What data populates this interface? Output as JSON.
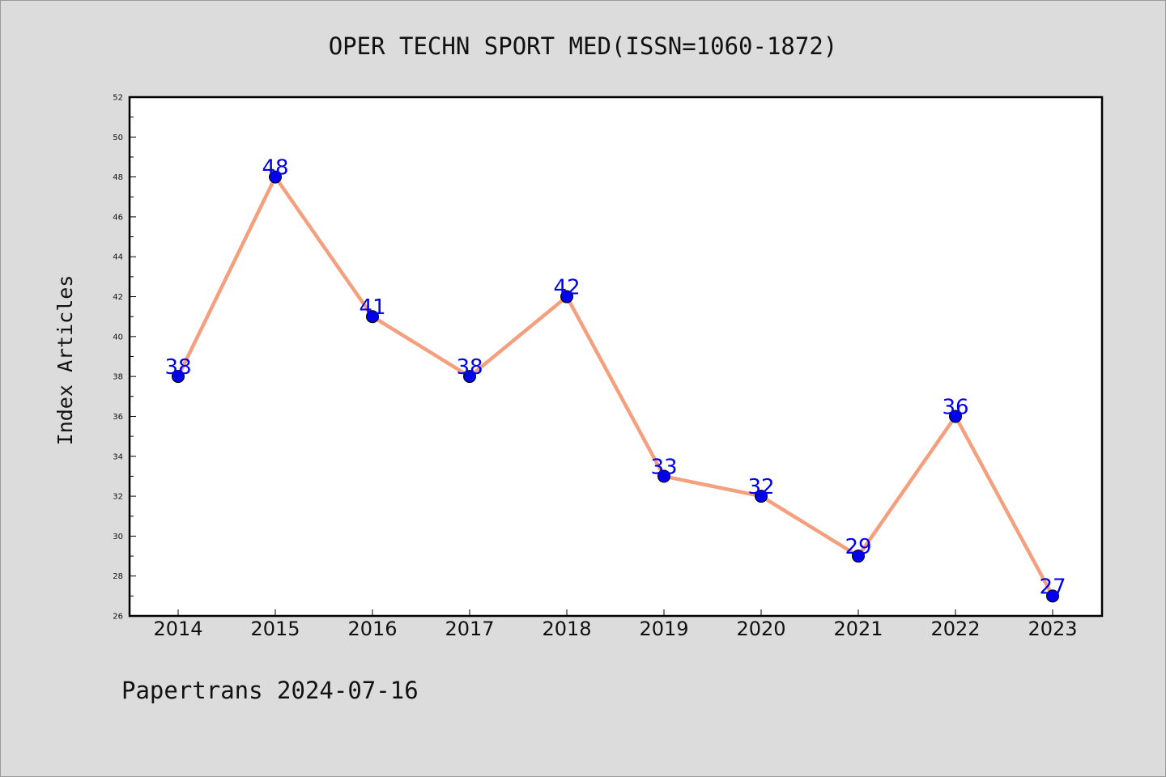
{
  "chart_data": {
    "type": "line",
    "title": "OPER TECHN SPORT MED(ISSN=1060-1872)",
    "xlabel": "",
    "ylabel": "Index Articles",
    "categories": [
      "2014",
      "2015",
      "2016",
      "2017",
      "2018",
      "2019",
      "2020",
      "2021",
      "2022",
      "2023"
    ],
    "series": [
      {
        "values": [
          38,
          48,
          41,
          38,
          42,
          33,
          32,
          29,
          36,
          27
        ]
      }
    ],
    "ylim": [
      26,
      52
    ],
    "yticks": [
      26,
      28,
      30,
      32,
      34,
      36,
      38,
      40,
      42,
      44,
      46,
      48,
      50,
      52
    ],
    "grid": false,
    "legend": "none",
    "colors": {
      "line": "#f4a07e",
      "marker": "#0000ee",
      "data_label": "#0000ee"
    }
  },
  "footer": {
    "text": "Papertrans 2024-07-16"
  }
}
